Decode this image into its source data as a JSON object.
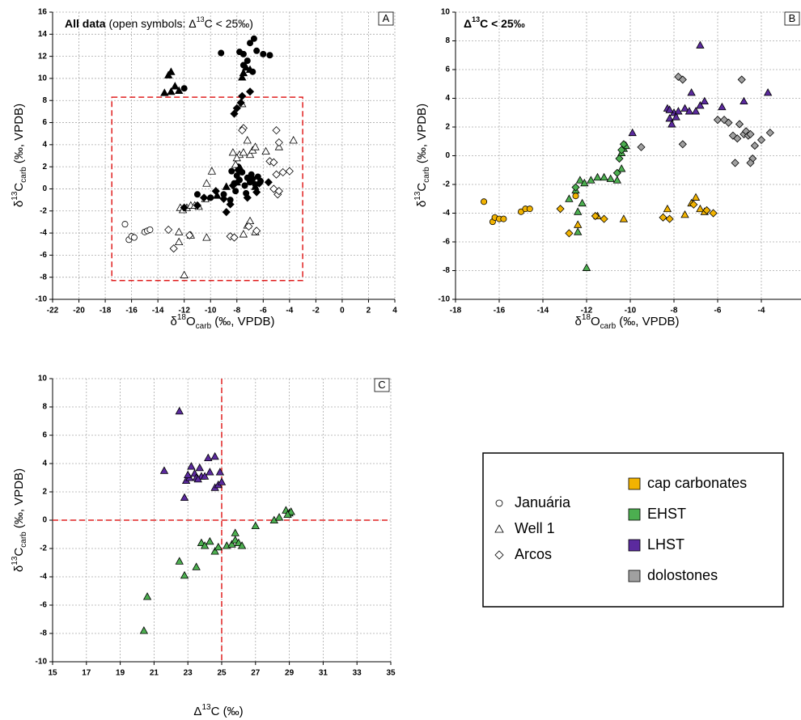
{
  "chart_data": [
    {
      "type": "scatter",
      "panel": "A",
      "title": [
        {
          "text": "All data",
          "style": "bold"
        },
        {
          "text": " (open symbols: Δ"
        },
        {
          "text": "13",
          "style": "sup"
        },
        {
          "text": "C < 25‰)"
        }
      ],
      "xlabel": [
        {
          "text": "δ"
        },
        {
          "text": "18",
          "style": "sup"
        },
        {
          "text": "O"
        },
        {
          "text": "carb",
          "style": "sub"
        },
        {
          "text": " (‰, VPDB)"
        }
      ],
      "ylabel": [
        {
          "text": "δ"
        },
        {
          "text": "13",
          "style": "sup"
        },
        {
          "text": "C"
        },
        {
          "text": "carb",
          "style": "sub"
        },
        {
          "text": " (‰, VPDB)"
        }
      ],
      "xlim": [
        -22,
        4
      ],
      "xticks": [
        -22,
        -20,
        -18,
        -16,
        -14,
        -12,
        -10,
        -8,
        -6,
        -4,
        -2,
        0,
        2,
        4
      ],
      "ylim": [
        -10,
        16
      ],
      "yticks": [
        -10,
        -8,
        -6,
        -4,
        -2,
        0,
        2,
        4,
        6,
        8,
        10,
        12,
        14,
        16
      ],
      "grid": true,
      "box": {
        "x": [
          -17.5,
          -3
        ],
        "y": [
          -8.3,
          8.3
        ],
        "color": "#e02020"
      },
      "series": [
        {
          "marker": "circle",
          "color": "#000000",
          "x": [
            -12,
            -9.2,
            -7.8,
            -7.5,
            -7.2,
            -7,
            -6.7,
            -6.5,
            -6,
            -5.5,
            -7.5,
            -6.8,
            -11,
            -10,
            -9,
            -8.5,
            -8.2,
            -8,
            -7.8,
            -7.6,
            -7.4,
            -7.2,
            -7,
            -6.8,
            -6.6,
            -6.4,
            -6.2,
            -8.4,
            -8.1,
            -7.9,
            -7.3,
            -6.9
          ],
          "values": [
            9.1,
            12.3,
            12.4,
            12.2,
            11.6,
            13.2,
            13.6,
            12.5,
            12.2,
            12.1,
            11.2,
            10.6,
            -0.5,
            -0.8,
            -0.5,
            -1,
            0.5,
            1.2,
            0.8,
            1.5,
            0.3,
            1,
            0.6,
            0.9,
            0.4,
            1.1,
            0.7,
            1.6,
            -0.2,
            2,
            -0.4,
            1.3
          ]
        },
        {
          "marker": "circle",
          "color": "#ffffff",
          "x": [
            -16.5,
            -16.2,
            -16,
            -15.8,
            -15,
            -14.8,
            -14.6
          ],
          "values": [
            -3.2,
            -4.6,
            -4.3,
            -4.4,
            -3.9,
            -3.8,
            -3.7
          ]
        },
        {
          "marker": "triangle",
          "color": "#000000",
          "x": [
            -13.5,
            -13,
            -13.2,
            -13,
            -12.7,
            -12.4,
            -7.5,
            -7.3,
            -7.6,
            -7,
            -9.5,
            -8.8,
            -8,
            -7.7,
            -6.6
          ],
          "values": [
            8.7,
            8.8,
            10.3,
            10.6,
            9.3,
            8.9,
            10.5,
            11,
            10.1,
            10.8,
            -0.6,
            0.2,
            0.6,
            1.8,
            0.2
          ]
        },
        {
          "marker": "triangle",
          "color": "#ffffff",
          "x": [
            -12.4,
            -12,
            -12.4,
            -12.3,
            -12.1,
            -11.8,
            -11.5,
            -11.2,
            -10.9,
            -10.4,
            -10.3,
            -9.9,
            -8.3,
            -8.1,
            -7.8,
            -7.5,
            -7,
            -6.8,
            -6.6,
            -7.2,
            -5.8,
            -4.8,
            -3.7,
            -11.5,
            -10.3,
            -7.5,
            -7.2,
            -7,
            -6.6,
            -8,
            -7.6
          ],
          "values": [
            -4.8,
            -7.8,
            -3.9,
            -1.7,
            -1.9,
            -1.7,
            -1.5,
            -1.5,
            -1.6,
            -0.9,
            0.5,
            1.6,
            3.3,
            2.2,
            3.1,
            3.3,
            3.1,
            3.5,
            3.8,
            4.4,
            3.4,
            3.8,
            4.4,
            -4.2,
            -4.4,
            -4.1,
            -3.3,
            -2.9,
            -3.9,
            2.8,
            7.7
          ]
        },
        {
          "marker": "diamond",
          "color": "#000000",
          "x": [
            -8,
            -7.6,
            -7,
            -7.7,
            -8.2,
            -11,
            -12,
            -10.5,
            -9,
            -8.5,
            -8.8,
            -7.2,
            -6.5,
            -8.3,
            -7.9,
            -7.1,
            -6.3,
            -5.6,
            -9.6
          ],
          "values": [
            7.3,
            8.4,
            8.8,
            7.8,
            6.8,
            -1.5,
            -1.7,
            -0.8,
            -0.9,
            -1.4,
            -2.1,
            -0.8,
            -0.3,
            0.3,
            1.7,
            0.9,
            0.5,
            0.6,
            -0.2
          ]
        },
        {
          "marker": "diamond",
          "color": "#ffffff",
          "x": [
            -7.5,
            -7.6,
            -5,
            -4.8,
            -5.5,
            -5.2,
            -4.5,
            -4,
            -5,
            -5.2,
            -4.9,
            -13.2,
            -12.8,
            -11.6,
            -8.5,
            -8.2,
            -6.5,
            -7.1,
            -4.8
          ],
          "values": [
            5.5,
            5.3,
            5.3,
            4.2,
            2.5,
            2.4,
            1.5,
            1.6,
            1.3,
            0,
            -0.5,
            -3.7,
            -5.4,
            -4.2,
            -4.3,
            -4.4,
            -3.8,
            -3.4,
            -0.2
          ]
        }
      ]
    },
    {
      "type": "scatter",
      "panel": "B",
      "title": [
        {
          "text": "Δ",
          "style": "bold"
        },
        {
          "text": "13",
          "style": "bold-sup"
        },
        {
          "text": "C < 25‰",
          "style": "bold"
        }
      ],
      "xlabel": [
        {
          "text": "δ"
        },
        {
          "text": "18",
          "style": "sup"
        },
        {
          "text": "O"
        },
        {
          "text": "carb",
          "style": "sub"
        },
        {
          "text": " (‰, VPDB)"
        }
      ],
      "ylabel": [
        {
          "text": "δ"
        },
        {
          "text": "13",
          "style": "sup"
        },
        {
          "text": "C"
        },
        {
          "text": "carb",
          "style": "sub"
        },
        {
          "text": " (‰, VPDB)"
        }
      ],
      "xlim": [
        -18,
        -2
      ],
      "xticks": [
        -18,
        -16,
        -14,
        -12,
        -10,
        -8,
        -6,
        -4,
        -2
      ],
      "ylim": [
        -10,
        10
      ],
      "yticks": [
        -10,
        -8,
        -6,
        -4,
        -2,
        0,
        2,
        4,
        6,
        8,
        10
      ],
      "grid": true,
      "series": [
        {
          "marker": "circle",
          "color": "#f2b300",
          "x": [
            -16.7,
            -16.3,
            -16.2,
            -16,
            -15.8,
            -15,
            -14.8,
            -14.6,
            -12.5
          ],
          "values": [
            -3.2,
            -4.6,
            -4.3,
            -4.4,
            -4.4,
            -3.9,
            -3.7,
            -3.7,
            -2.8
          ]
        },
        {
          "marker": "triangle",
          "color": "#f2b300",
          "x": [
            -12.4,
            -11.5,
            -10.3,
            -8.3,
            -7.5,
            -7.2,
            -7,
            -6.8,
            -6.6
          ],
          "values": [
            -4.8,
            -4.2,
            -4.4,
            -3.7,
            -4.1,
            -3.3,
            -2.9,
            -3.7,
            -3.9
          ]
        },
        {
          "marker": "diamond",
          "color": "#f2b300",
          "x": [
            -13.2,
            -12.8,
            -11.6,
            -11.2,
            -8.5,
            -8.2,
            -7.1,
            -6.5,
            -6.2
          ],
          "values": [
            -3.7,
            -5.4,
            -4.2,
            -4.4,
            -4.3,
            -4.4,
            -3.4,
            -3.8,
            -4
          ]
        },
        {
          "marker": "triangle",
          "color": "#4caf50",
          "x": [
            -12.4,
            -12,
            -12.4,
            -12.3,
            -12.1,
            -11.8,
            -11.5,
            -11.2,
            -10.9,
            -10.6,
            -10.4,
            -10.4,
            -10.3,
            -10.2,
            -12.2,
            -12.5,
            -12.8
          ],
          "values": [
            -5.3,
            -7.8,
            -3.9,
            -1.7,
            -1.9,
            -1.7,
            -1.5,
            -1.5,
            -1.6,
            -1.7,
            -0.9,
            0.2,
            0.5,
            0.7,
            -3.3,
            -2.4,
            -3
          ]
        },
        {
          "marker": "diamond",
          "color": "#4caf50",
          "x": [
            -12.5,
            -10.6,
            -10.4,
            -10.3,
            -10.5
          ],
          "values": [
            -2.2,
            -1.2,
            0.4,
            0.8,
            -0.2
          ]
        },
        {
          "marker": "triangle",
          "color": "#5b2a9e",
          "x": [
            -9.9,
            -8.3,
            -8.2,
            -8.1,
            -8,
            -7.8,
            -7.5,
            -7.3,
            -7,
            -6.8,
            -6.6,
            -7.2,
            -6.8,
            -5.8,
            -4.8,
            -3.7,
            -8.2,
            -7.9
          ],
          "values": [
            1.6,
            3.3,
            2.6,
            2.2,
            3,
            3.1,
            3.3,
            3.1,
            3.1,
            3.5,
            3.8,
            4.4,
            7.7,
            3.4,
            3.8,
            4.4,
            3.2,
            2.7
          ]
        },
        {
          "marker": "diamond",
          "color": "#a0a0a0",
          "x": [
            -9.5,
            -7.8,
            -7.6,
            -7.6,
            -6,
            -5.7,
            -5.5,
            -5.3,
            -5.1,
            -5,
            -4.9,
            -4.8,
            -4.7,
            -4.6,
            -4.5,
            -4.4,
            -4.5,
            -5.2,
            -3.6,
            -4.3,
            -4
          ],
          "values": [
            0.6,
            5.5,
            5.3,
            0.8,
            2.5,
            2.5,
            2.3,
            1.4,
            1.2,
            2.2,
            5.3,
            1.5,
            1.7,
            1.4,
            1.5,
            -0.2,
            -0.5,
            -0.5,
            1.6,
            0.7,
            1.1
          ]
        }
      ]
    },
    {
      "type": "scatter",
      "panel": "C",
      "xlabel": [
        {
          "text": "Δ"
        },
        {
          "text": "13",
          "style": "sup"
        },
        {
          "text": "C (‰)"
        }
      ],
      "ylabel": [
        {
          "text": "δ"
        },
        {
          "text": "13",
          "style": "sup"
        },
        {
          "text": "C"
        },
        {
          "text": "carb",
          "style": "sub"
        },
        {
          "text": " (‰, VPDB)"
        }
      ],
      "xlim": [
        15,
        35
      ],
      "xticks": [
        15,
        17,
        19,
        21,
        23,
        25,
        27,
        29,
        31,
        33,
        35
      ],
      "ylim": [
        -10,
        10
      ],
      "yticks": [
        -10,
        -8,
        -6,
        -4,
        -2,
        0,
        2,
        4,
        6,
        8,
        10
      ],
      "grid": true,
      "ref_lines": {
        "x": 25,
        "y": 0,
        "color": "#e02020"
      },
      "series": [
        {
          "marker": "triangle",
          "color": "#4caf50",
          "x": [
            20.4,
            20.6,
            22.5,
            22.8,
            23.5,
            23.8,
            24,
            24.3,
            24.6,
            24.8,
            25.3,
            25.6,
            25.8,
            25.8,
            26,
            26.2,
            27,
            28.1,
            28.4,
            28.8,
            29,
            29.1,
            28.9
          ],
          "values": [
            -7.8,
            -5.4,
            -2.9,
            -3.9,
            -3.3,
            -1.6,
            -1.8,
            -1.5,
            -2.2,
            -1.9,
            -1.8,
            -1.7,
            -0.9,
            -1.4,
            -1.6,
            -1.8,
            -0.4,
            0,
            0.2,
            0.7,
            0.5,
            0.6,
            0.4
          ]
        },
        {
          "marker": "triangle",
          "color": "#5b2a9e",
          "x": [
            21.6,
            22.5,
            22.8,
            22.9,
            23.1,
            23.2,
            23.4,
            23.5,
            23.7,
            23.8,
            24,
            24.2,
            24.3,
            24.6,
            24.6,
            24.8,
            24.9,
            25,
            23,
            23.6
          ],
          "values": [
            3.5,
            7.7,
            1.6,
            2.8,
            3,
            3.8,
            3.3,
            3,
            3.7,
            3.1,
            3.1,
            4.4,
            3.4,
            4.5,
            2.3,
            2.5,
            3.4,
            2.7,
            3.2,
            2.9
          ]
        }
      ]
    }
  ],
  "legend": {
    "symbols": [
      {
        "label": "Januária",
        "marker": "circle"
      },
      {
        "label": "Well 1",
        "marker": "triangle"
      },
      {
        "label": "Arcos",
        "marker": "diamond"
      }
    ],
    "colors": [
      {
        "label": "cap carbonates",
        "color": "#f2b300"
      },
      {
        "label": "EHST",
        "color": "#4caf50"
      },
      {
        "label": "LHST",
        "color": "#5b2a9e"
      },
      {
        "label": "dolostones",
        "color": "#a0a0a0"
      }
    ]
  }
}
